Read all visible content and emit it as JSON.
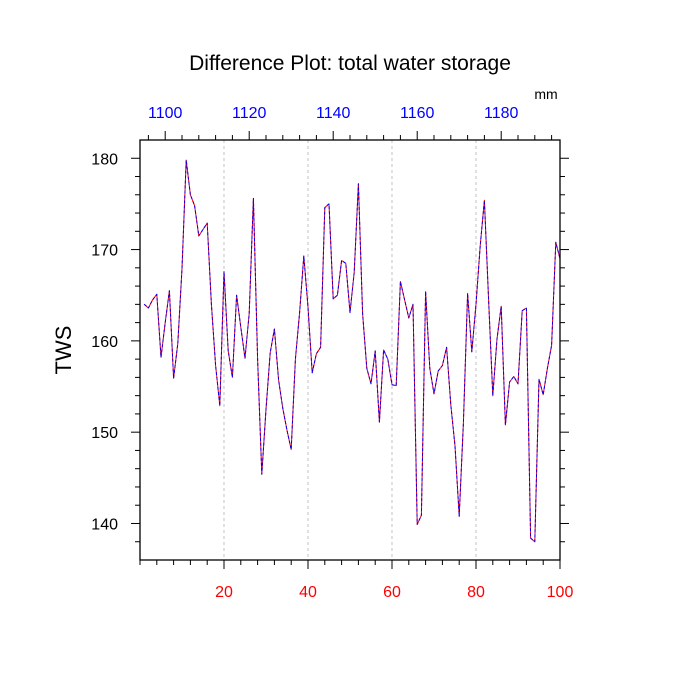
{
  "chart_data": {
    "type": "line",
    "title": "Difference Plot: total water storage",
    "ylabel": "TWS",
    "top_axis_unit": "mm",
    "xlim": [
      0,
      100
    ],
    "ylim": [
      136,
      182
    ],
    "bottom_ticks": [
      20,
      40,
      60,
      80,
      100
    ],
    "top_ticks": [
      1100,
      1120,
      1140,
      1160,
      1180
    ],
    "top_axis_xlim": [
      1094,
      1194
    ],
    "y_ticks": [
      140,
      150,
      160,
      170,
      180
    ],
    "grid": "vertical dashed at major x ticks",
    "colors": {
      "series_a": "#ff0000",
      "series_b": "#0000ff",
      "bottom_tick_labels": "#ff0000",
      "top_tick_labels": "#0000ff"
    },
    "series": [
      {
        "x": [
          1,
          2,
          3,
          4,
          5,
          6,
          7,
          8,
          9,
          10,
          11,
          12,
          13,
          14,
          15,
          16,
          17,
          18,
          19,
          20,
          21,
          22,
          23,
          24,
          25,
          26,
          27,
          28,
          29,
          30,
          31,
          32,
          33,
          34,
          35,
          36,
          37,
          38,
          39,
          40,
          41,
          42,
          43,
          44,
          45,
          46,
          47,
          48,
          49,
          50,
          51,
          52,
          53,
          54,
          55,
          56,
          57,
          58,
          59,
          60,
          61,
          62,
          63,
          64,
          65,
          66,
          67,
          68,
          69,
          70,
          71,
          72,
          73,
          74,
          75,
          76,
          77,
          78,
          79,
          80,
          81,
          82,
          83,
          84,
          85,
          86,
          87,
          88,
          89,
          90,
          91,
          92,
          93,
          94,
          95,
          96,
          97,
          98,
          99,
          100
        ],
        "values": [
          164.0,
          163.6,
          164.5,
          165.1,
          158.2,
          162.0,
          165.5,
          155.9,
          159.7,
          167.9,
          179.8,
          176.0,
          174.8,
          171.5,
          172.2,
          172.9,
          164.0,
          157.3,
          152.9,
          167.6,
          158.9,
          156.0,
          165.0,
          161.5,
          158.1,
          163.0,
          175.6,
          158.0,
          145.4,
          152.5,
          158.7,
          161.3,
          155.7,
          152.6,
          150.2,
          148.1,
          158.0,
          163.1,
          169.3,
          163.7,
          156.5,
          158.6,
          159.3,
          174.6,
          175.0,
          164.6,
          165.0,
          168.8,
          168.5,
          163.1,
          167.5,
          177.2,
          163.0,
          157.0,
          155.3,
          158.9,
          151.1,
          159.0,
          158.0,
          155.2,
          155.1,
          166.5,
          164.5,
          162.5,
          164.0,
          139.9,
          140.9,
          165.4,
          157.0,
          154.2,
          156.7,
          157.3,
          159.3,
          153.0,
          148.5,
          140.8,
          151.0,
          165.2,
          158.8,
          164.0,
          170.4,
          175.4,
          164.5,
          154.0,
          160.2,
          163.8,
          150.8,
          155.5,
          156.1,
          155.3,
          163.3,
          163.6,
          138.4,
          138.0,
          155.8,
          154.1,
          157.0,
          159.5,
          170.8,
          169.0
        ]
      }
    ]
  }
}
